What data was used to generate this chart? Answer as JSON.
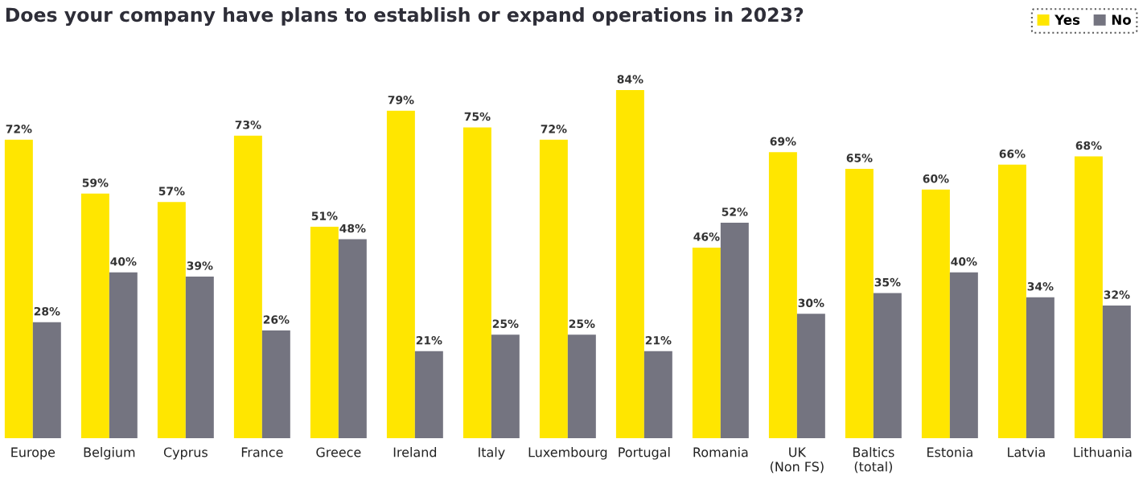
{
  "chart_data": {
    "type": "bar",
    "title": "Does your company have plans to establish or expand operations in 2023?",
    "categories": [
      "Europe",
      "Belgium",
      "Cyprus",
      "France",
      "Greece",
      "Ireland",
      "Italy",
      "Luxembourg",
      "Portugal",
      "Romania",
      "UK\n(Non FS)",
      "Baltics\n(total)",
      "Estonia",
      "Latvia",
      "Lithuania"
    ],
    "series": [
      {
        "name": "Yes",
        "color": "#ffe600",
        "values": [
          72,
          59,
          57,
          73,
          51,
          79,
          75,
          72,
          84,
          46,
          69,
          65,
          60,
          66,
          68
        ],
        "value_labels": [
          "72%",
          "59%",
          "57%",
          "73%",
          "51%",
          "79%",
          "75%",
          "72%",
          "84%",
          "46%",
          "69%",
          "65%",
          "60%",
          "66%",
          "68%"
        ]
      },
      {
        "name": "No",
        "color": "#747480",
        "values": [
          28,
          40,
          39,
          26,
          48,
          21,
          25,
          25,
          21,
          52,
          30,
          35,
          40,
          34,
          32
        ],
        "value_labels": [
          "28%",
          "40%",
          "39%",
          "26%",
          "48%",
          "21%",
          "25%",
          "25%",
          "21%",
          "52%",
          "30%",
          "35%",
          "40%",
          "34%",
          "32%"
        ]
      }
    ],
    "legend": "top right",
    "grid": false
  }
}
